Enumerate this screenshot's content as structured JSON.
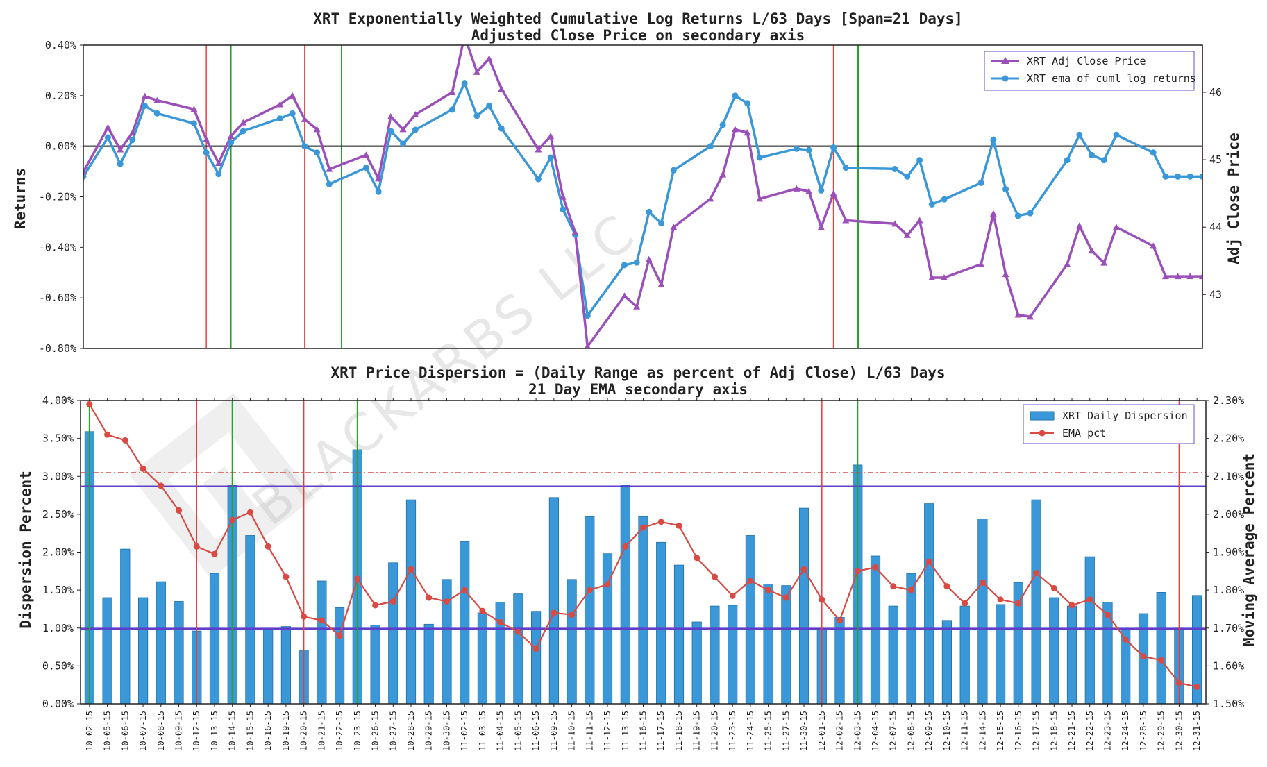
{
  "watermark": "BLACKARBS LLC",
  "colors": {
    "price": "#9b4fb9",
    "returns": "#3a98d8",
    "bars": "#3a98d8",
    "bar_edge": "#1f6fa8",
    "ema": "#d94a43",
    "red_line": "#f03a3a",
    "green_line": "#2ca02c",
    "band": "#5f3fc9",
    "zero": "#111111"
  },
  "chart_data": [
    {
      "type": "line",
      "title": "XRT Exponentially Weighted Cumulative Log Returns L/63 Days [Span=21 Days]",
      "subtitle": "Adjusted Close Price on secondary axis",
      "ylabel": "Returns",
      "y2label": "Adj Close Price",
      "ylim": [
        -0.8,
        0.4
      ],
      "y2lim": [
        42.2,
        46.7
      ],
      "yticks": [
        "-0.80%",
        "-0.60%",
        "-0.40%",
        "-0.20%",
        "0.00%",
        "0.20%",
        "0.40%"
      ],
      "y2ticks": [
        "43",
        "44",
        "45",
        "46"
      ],
      "legend": [
        "XRT Adj Close Price",
        "XRT ema of cuml log returns"
      ],
      "legend_position": "top-right",
      "x": [
        0,
        2,
        3,
        4,
        5,
        6,
        9,
        10,
        11,
        12,
        13,
        16,
        17,
        18,
        19,
        20,
        23,
        24,
        25,
        26,
        27,
        30,
        31,
        32,
        33,
        34,
        37,
        38,
        39,
        40,
        41,
        44,
        45,
        46,
        47,
        48,
        51,
        52,
        53,
        54,
        55,
        58,
        59,
        60,
        61,
        62,
        66,
        67,
        68,
        69,
        70,
        73,
        74,
        75,
        76,
        77,
        80,
        81,
        82,
        83,
        84,
        87,
        88,
        89,
        90,
        91
      ],
      "series": [
        {
          "name": "XRT ema of cuml log returns",
          "axis": "left",
          "values": [
            -0.12,
            0.035,
            -0.07,
            0.025,
            0.16,
            0.13,
            0.09,
            -0.025,
            -0.11,
            0.015,
            0.06,
            0.11,
            0.13,
            0.0,
            -0.025,
            -0.15,
            -0.085,
            -0.18,
            0.06,
            0.01,
            0.065,
            0.145,
            0.25,
            0.12,
            0.16,
            0.07,
            -0.13,
            -0.045,
            -0.25,
            -0.35,
            -0.67,
            -0.47,
            -0.46,
            -0.26,
            -0.305,
            -0.095,
            0.0,
            0.085,
            0.2,
            0.17,
            -0.045,
            -0.01,
            -0.015,
            -0.175,
            -0.005,
            -0.085,
            -0.09,
            -0.12,
            -0.055,
            -0.23,
            -0.21,
            -0.145,
            0.025,
            -0.17,
            -0.275,
            -0.265,
            -0.055,
            0.045,
            -0.035,
            -0.055,
            0.045,
            -0.025,
            -0.12,
            -0.12,
            -0.12,
            -0.12
          ]
        },
        {
          "name": "XRT Adj Close Price",
          "axis": "right",
          "values": [
            44.82,
            45.48,
            45.15,
            45.4,
            45.94,
            45.88,
            45.75,
            45.3,
            44.95,
            45.35,
            45.55,
            45.82,
            45.95,
            45.6,
            45.45,
            44.86,
            45.07,
            44.72,
            45.64,
            45.45,
            45.67,
            46.0,
            46.84,
            46.3,
            46.5,
            46.05,
            45.15,
            45.35,
            44.45,
            43.92,
            42.23,
            42.98,
            42.82,
            43.52,
            43.15,
            44.0,
            44.42,
            44.78,
            45.45,
            45.4,
            44.42,
            44.57,
            44.53,
            44.0,
            44.5,
            44.1,
            44.05,
            43.88,
            44.1,
            43.25,
            43.25,
            43.45,
            44.2,
            43.3,
            42.7,
            42.67,
            43.45,
            44.02,
            43.65,
            43.47,
            44.0,
            43.72,
            43.27,
            43.27,
            43.27,
            43.27
          ]
        }
      ],
      "red_lines": [
        10,
        18,
        61,
        91
      ],
      "green_lines": [
        12,
        21,
        63
      ]
    },
    {
      "type": "bar",
      "title": "XRT Price Dispersion = (Daily Range as percent of Adj Close) L/63 Days",
      "subtitle": "21 Day EMA secondary axis",
      "ylabel": "Dispersion Percent",
      "y2label": "Moving Average Percent",
      "ylim": [
        0,
        4.0
      ],
      "y2lim": [
        1.5,
        2.3
      ],
      "yticks": [
        "0.00%",
        "0.50%",
        "1.00%",
        "1.50%",
        "2.00%",
        "2.50%",
        "3.00%",
        "3.50%",
        "4.00%"
      ],
      "y2ticks": [
        "1.50%",
        "1.60%",
        "1.70%",
        "1.80%",
        "1.90%",
        "2.00%",
        "2.10%",
        "2.20%",
        "2.30%"
      ],
      "legend": [
        "XRT Daily Dispersion",
        "EMA pct"
      ],
      "legend_position": "top-right",
      "categories": [
        "10-02-15",
        "10-05-15",
        "10-06-15",
        "10-07-15",
        "10-08-15",
        "10-09-15",
        "10-12-15",
        "10-13-15",
        "10-14-15",
        "10-15-15",
        "10-16-15",
        "10-19-15",
        "10-20-15",
        "10-21-15",
        "10-22-15",
        "10-23-15",
        "10-26-15",
        "10-27-15",
        "10-28-15",
        "10-29-15",
        "10-30-15",
        "11-02-15",
        "11-03-15",
        "11-04-15",
        "11-05-15",
        "11-06-15",
        "11-09-15",
        "11-10-15",
        "11-11-15",
        "11-12-15",
        "11-13-15",
        "11-16-15",
        "11-17-15",
        "11-18-15",
        "11-19-15",
        "11-20-15",
        "11-23-15",
        "11-24-15",
        "11-25-15",
        "11-27-15",
        "11-30-15",
        "12-01-15",
        "12-02-15",
        "12-03-15",
        "12-04-15",
        "12-07-15",
        "12-08-15",
        "12-09-15",
        "12-10-15",
        "12-11-15",
        "12-14-15",
        "12-15-15",
        "12-16-15",
        "12-17-15",
        "12-18-15",
        "12-21-15",
        "12-22-15",
        "12-23-15",
        "12-24-15",
        "12-28-15",
        "12-29-15",
        "12-30-15",
        "12-31-15"
      ],
      "series": [
        {
          "name": "XRT Daily Dispersion",
          "axis": "left",
          "values": [
            3.59,
            1.4,
            2.04,
            1.4,
            1.61,
            1.35,
            0.96,
            1.72,
            2.88,
            2.22,
            0.98,
            1.02,
            0.71,
            1.62,
            1.27,
            3.35,
            1.04,
            1.86,
            2.69,
            1.05,
            1.64,
            2.14,
            1.2,
            1.34,
            1.45,
            1.22,
            2.72,
            1.64,
            2.47,
            1.98,
            2.88,
            2.47,
            2.13,
            1.83,
            1.08,
            1.29,
            1.3,
            2.22,
            1.58,
            1.56,
            2.58,
            0.98,
            1.14,
            3.15,
            1.95,
            1.29,
            1.72,
            2.64,
            1.1,
            1.29,
            2.44,
            1.31,
            1.6,
            2.69,
            1.4,
            1.29,
            1.94,
            1.34,
            0.98,
            1.19,
            1.47,
            1.0,
            1.43
          ]
        },
        {
          "name": "EMA pct",
          "axis": "right",
          "values": [
            2.29,
            2.21,
            2.195,
            2.12,
            2.075,
            2.01,
            1.915,
            1.895,
            1.985,
            2.005,
            1.915,
            1.835,
            1.73,
            1.72,
            1.68,
            1.83,
            1.76,
            1.77,
            1.855,
            1.78,
            1.77,
            1.8,
            1.745,
            1.715,
            1.69,
            1.645,
            1.74,
            1.735,
            1.8,
            1.815,
            1.915,
            1.965,
            1.98,
            1.97,
            1.885,
            1.835,
            1.785,
            1.825,
            1.8,
            1.78,
            1.855,
            1.775,
            1.72,
            1.85,
            1.86,
            1.81,
            1.8,
            1.875,
            1.81,
            1.765,
            1.82,
            1.775,
            1.765,
            1.845,
            1.805,
            1.76,
            1.775,
            1.735,
            1.67,
            1.625,
            1.615,
            1.555,
            1.545
          ]
        }
      ],
      "hlines_left": [
        0.99,
        2.87
      ],
      "hline_right_dashed": 2.11,
      "red_lines": [
        6,
        12,
        41,
        61
      ],
      "green_lines": [
        0,
        8,
        15,
        43
      ]
    }
  ]
}
